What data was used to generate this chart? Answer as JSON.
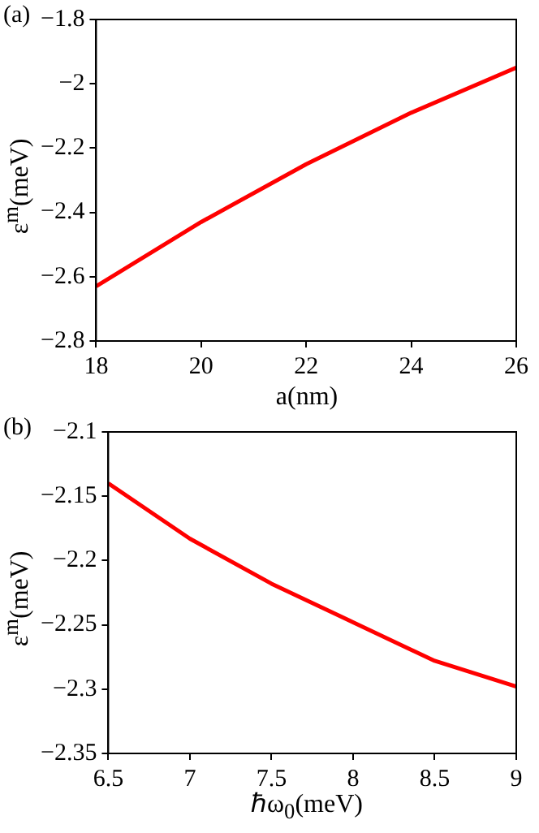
{
  "chart_data": [
    {
      "type": "line",
      "annotations": [
        "(a)"
      ],
      "xlabel": "a(nm)",
      "ylabel": "ε$^{m}$(meV)",
      "x": [
        18,
        20,
        22,
        24,
        26
      ],
      "series": [
        {
          "color": "#ff0000",
          "values": [
            -2.63,
            -2.43,
            -2.25,
            -2.09,
            -1.95
          ]
        }
      ],
      "xlim": [
        18,
        26
      ],
      "xticks": [
        18,
        20,
        22,
        24,
        26
      ],
      "ylim": [
        -2.8,
        -1.8
      ],
      "yticks": [
        {
          "value": -2.8,
          "label": "−2.8"
        },
        {
          "value": -2.6,
          "label": "−2.6"
        },
        {
          "value": -2.4,
          "label": "−2.4"
        },
        {
          "value": -2.2,
          "label": "−2.2"
        },
        {
          "value": -2,
          "label": "−2"
        },
        {
          "value": -1.8,
          "label": "−1.8"
        }
      ]
    },
    {
      "type": "line",
      "annotations": [
        "(b)"
      ],
      "xlabel": "ℏω$_{0}$(meV)",
      "ylabel": "ε$^{m}$(meV)",
      "x": [
        6.5,
        7,
        7.5,
        8,
        8.5,
        9
      ],
      "series": [
        {
          "color": "#ff0000",
          "values": [
            -2.14,
            -2.183,
            -2.218,
            -2.248,
            -2.278,
            -2.298
          ]
        }
      ],
      "xlim": [
        6.5,
        9
      ],
      "xticks": [
        6.5,
        7,
        7.5,
        8,
        8.5,
        9
      ],
      "ylim": [
        -2.35,
        -2.1
      ],
      "yticks": [
        {
          "value": -2.35,
          "label": "−2.35"
        },
        {
          "value": -2.3,
          "label": "−2.3"
        },
        {
          "value": -2.25,
          "label": "−2.25"
        },
        {
          "value": -2.2,
          "label": "−2.2"
        },
        {
          "value": -2.15,
          "label": "−2.15"
        },
        {
          "value": -2.1,
          "label": "−2.1"
        }
      ]
    }
  ]
}
